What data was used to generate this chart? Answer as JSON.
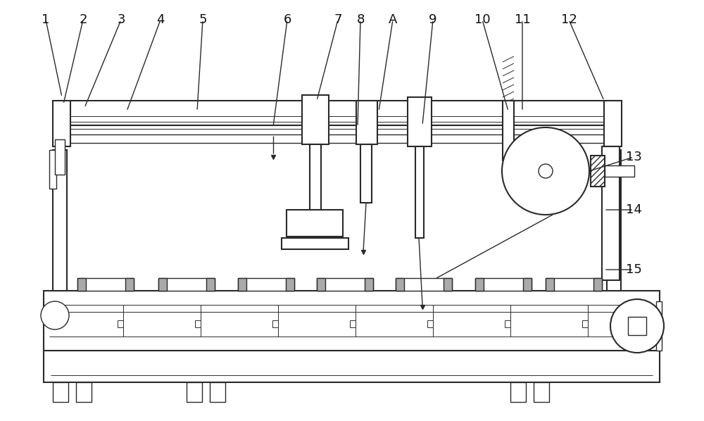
{
  "line_color": "#2a2a2a",
  "figsize": [
    10.0,
    5.98
  ],
  "dpi": 100,
  "label_color": "#111111",
  "label_fontsize": 13
}
